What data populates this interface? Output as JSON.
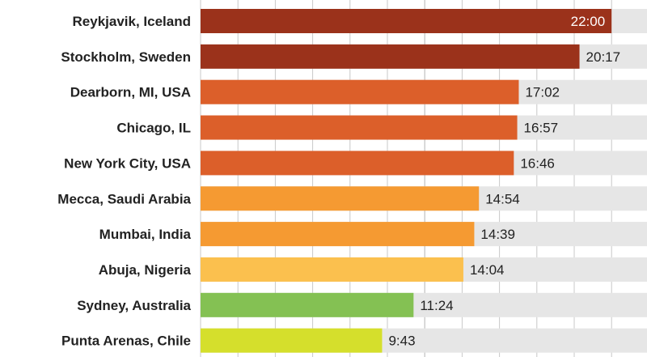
{
  "chart_data": {
    "type": "bar",
    "orientation": "horizontal",
    "title": "",
    "xlabel": "",
    "ylabel": "",
    "xlim": [
      0,
      24
    ],
    "grid": true,
    "categories": [
      "Reykjavik, Iceland",
      "Stockholm, Sweden",
      "Dearborn, MI, USA",
      "Chicago, IL",
      "New York City, USA",
      "Mecca, Saudi Arabia",
      "Mumbai, India",
      "Abuja, Nigeria",
      "Sydney, Australia",
      "Punta Arenas, Chile"
    ],
    "labels": [
      "22:00",
      "20:17",
      "17:02",
      "16:57",
      "16:46",
      "14:54",
      "14:39",
      "14:04",
      "11:24",
      "9:43"
    ],
    "values": [
      22.0,
      20.283,
      17.033,
      16.95,
      16.767,
      14.9,
      14.65,
      14.067,
      11.4,
      9.717
    ],
    "colors": [
      "#9b321b",
      "#9b321b",
      "#dc5f2a",
      "#dc5f2a",
      "#dc5f2a",
      "#f59a32",
      "#f59a32",
      "#fbc04e",
      "#84c153",
      "#d5df2c"
    ],
    "track_color": "#e6e6e6",
    "grid_color": "#c8c8c8"
  }
}
